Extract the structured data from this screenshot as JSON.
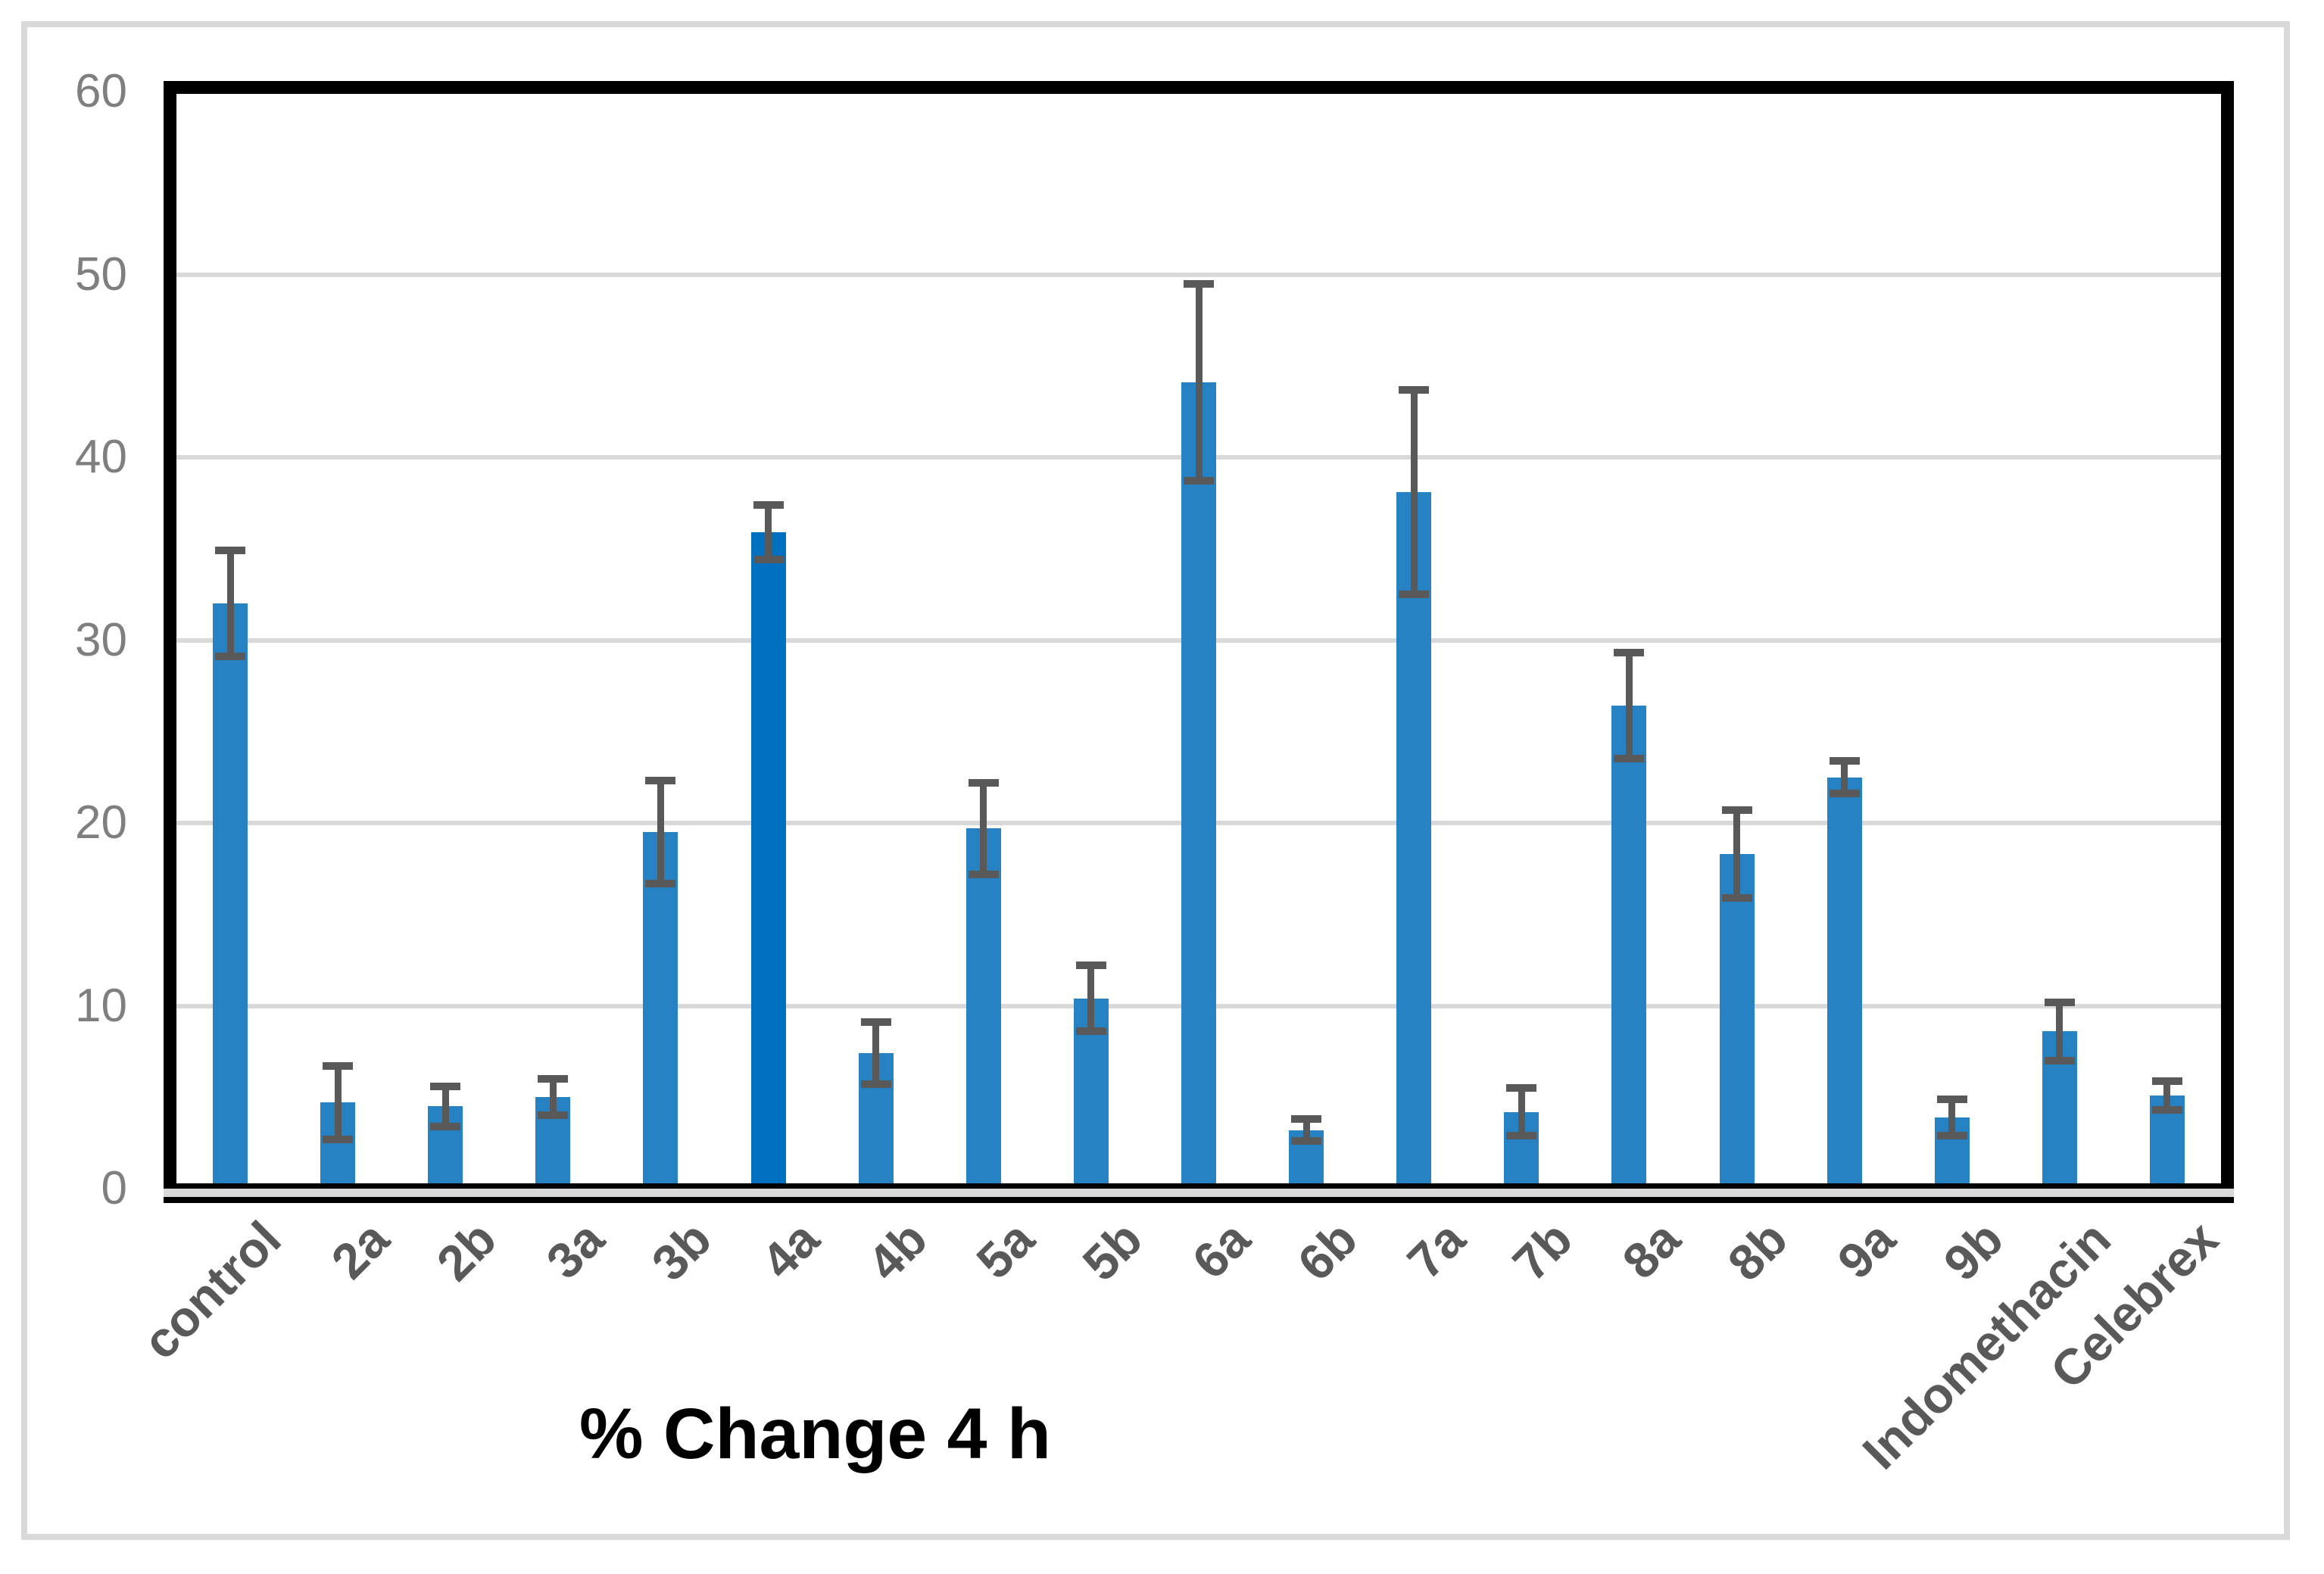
{
  "chart_data": {
    "type": "bar",
    "title": "% Change 4 h",
    "categories": [
      "control",
      "2a",
      "2b",
      "3a",
      "3b",
      "4a",
      "4b",
      "5a",
      "5b",
      "6a",
      "6b",
      "7a",
      "7b",
      "8a",
      "8b",
      "9a",
      "9b",
      "Indomethacin",
      "Celebrex"
    ],
    "values": [
      32.0,
      4.7,
      4.5,
      5.0,
      19.5,
      35.9,
      7.4,
      19.7,
      10.4,
      44.1,
      3.2,
      38.1,
      4.2,
      26.4,
      18.3,
      22.5,
      3.9,
      8.6,
      5.1
    ],
    "errors": [
      2.9,
      2.0,
      1.1,
      1.0,
      2.8,
      1.5,
      1.7,
      2.5,
      1.8,
      5.4,
      0.6,
      5.6,
      1.3,
      2.9,
      2.4,
      0.9,
      1.0,
      1.6,
      0.8
    ],
    "xlabel": "% Change 4 h",
    "ylabel": "",
    "ylim": [
      0,
      60
    ],
    "yticks": [
      0,
      10,
      20,
      30,
      40,
      50,
      60
    ],
    "grid": true,
    "legend": false,
    "bar_color": "#2782C3",
    "bar_color_overrides": {
      "4a": "#0070C0"
    },
    "error_bar_color": "#595959",
    "gridline_color": "#D9D9D9",
    "y_tick_label_color": "#7F7F7F",
    "category_label_color": "#595959",
    "plot_border_color": "#000000",
    "figure_frame_color": "#D9D9D9"
  }
}
